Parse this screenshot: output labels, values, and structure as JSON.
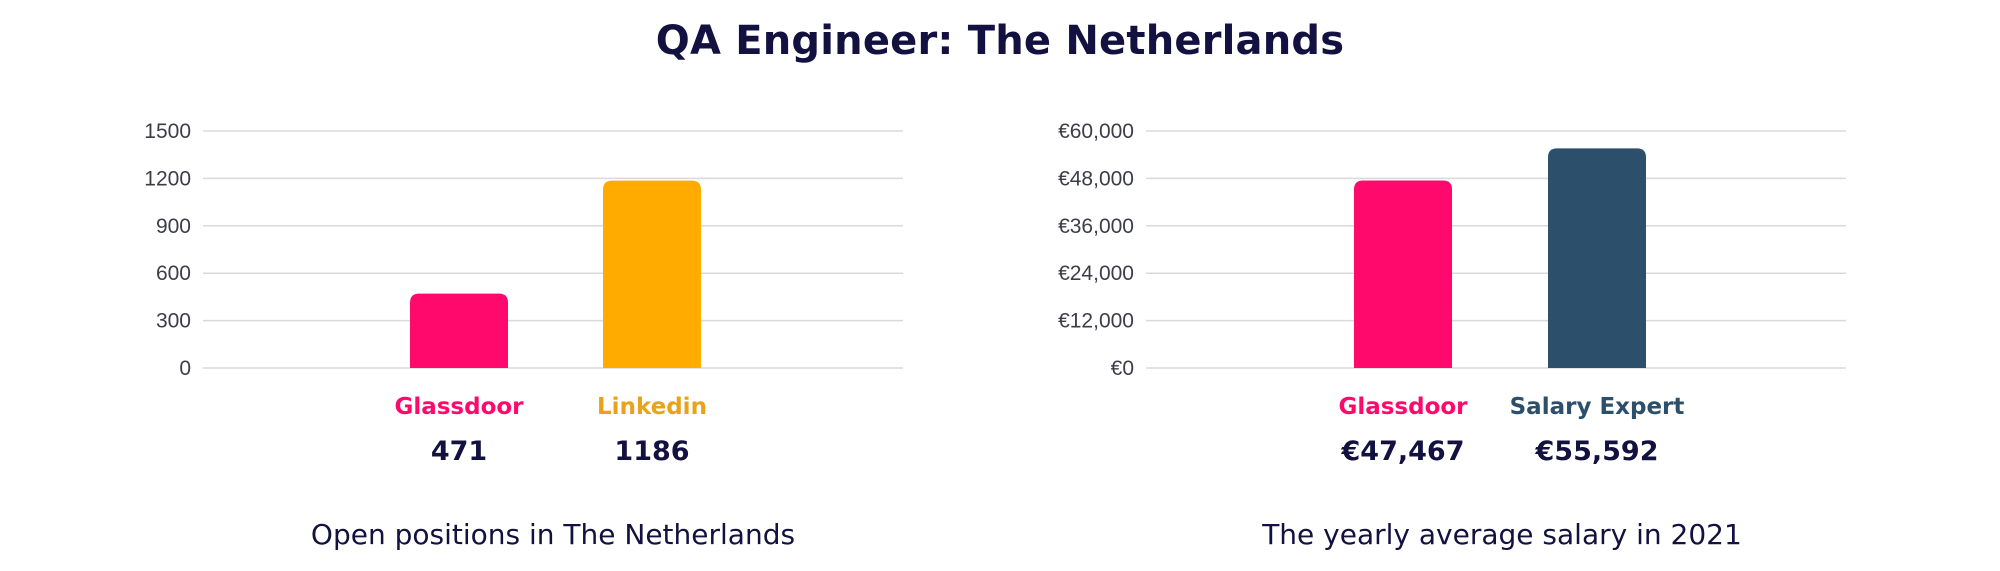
{
  "page": {
    "title": "QA Engineer: The Netherlands"
  },
  "chart_data": [
    {
      "type": "bar",
      "categories": [
        "Glassdoor",
        "Linkedin"
      ],
      "values": [
        471,
        1186
      ],
      "value_labels": [
        "471",
        "1186"
      ],
      "colors": [
        "#ff0a6c",
        "#ffab00"
      ],
      "label_colors": [
        "#ff0a6c",
        "#e8a31a"
      ],
      "ylim": [
        0,
        1500
      ],
      "yticks": [
        0,
        300,
        600,
        900,
        1200,
        1500
      ],
      "ytick_labels": [
        "0",
        "300",
        "600",
        "900",
        "1200",
        "1500"
      ],
      "grid": true,
      "caption": "Open positions in The Netherlands"
    },
    {
      "type": "bar",
      "categories": [
        "Glassdoor",
        "Salary Expert"
      ],
      "values": [
        47467,
        55592
      ],
      "value_labels": [
        "€47,467",
        "€55,592"
      ],
      "colors": [
        "#ff0a6c",
        "#2c4f6b"
      ],
      "label_colors": [
        "#ff0a6c",
        "#2c4f6b"
      ],
      "ylim": [
        0,
        60000
      ],
      "yticks": [
        0,
        12000,
        24000,
        36000,
        48000,
        60000
      ],
      "ytick_labels": [
        "€0",
        "€12,000",
        "€24,000",
        "€36,000",
        "€48,000",
        "€60,000"
      ],
      "grid": true,
      "caption": "The yearly average salary in 2021"
    }
  ]
}
